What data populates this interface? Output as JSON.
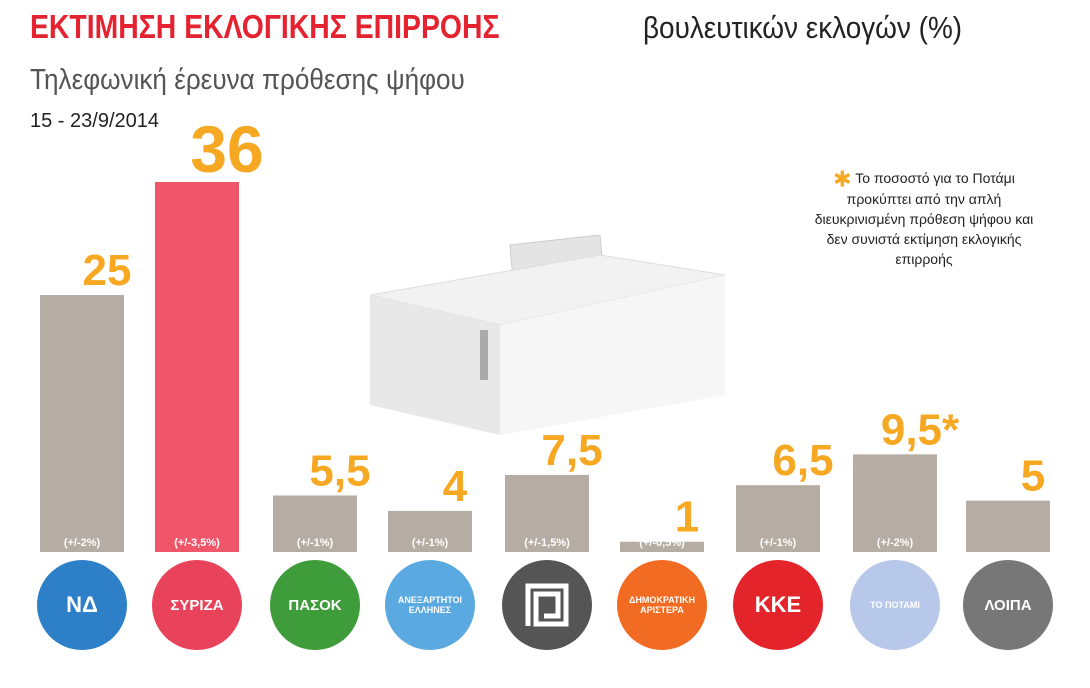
{
  "header": {
    "title_bold": "ΕΚΤΙΜΗΣΗ ΕΚΛΟΓΙΚΗΣ ΕΠΙΡΡΟΗΣ",
    "title_rest": "βουλευτικών εκλογών (%)",
    "subtitle": "Τηλεφωνική έρευνα πρόθεσης ψήφου",
    "date": "15 - 23/9/2014"
  },
  "note": "Το ποσοστό για το Ποτάμι προκύπτει από την απλή διευκρινισμένη πρόθεση ψήφου και δεν συνιστά εκτίμηση εκλογικής επιρροής",
  "chart_data": {
    "type": "bar",
    "categories": [
      "ΝΔ",
      "ΣΥΡΙΖΑ",
      "ΠΑΣΟΚ",
      "ΑΝΕΞΑΡΤΗΤΟΙ ΕΛΛΗΝΕΣ",
      "ΧΡΥΣΗ ΑΥΓΗ",
      "ΔΗΜΟΚΡΑΤΙΚΗ ΑΡΙΣΤΕΡΑ",
      "ΚΚΕ",
      "ΤΟ ΠΟΤΑΜΙ",
      "ΛΟΙΠΑ"
    ],
    "logo_labels": [
      "ΝΔ",
      "ΣΥΡΙΖΑ",
      "ΠΑΣΟΚ",
      "ΑΝΕΞΑΡΤΗΤΟΙ ΕΛΛΗΝΕΣ",
      "",
      "ΔΗΜΟΚΡΑΤΙΚΗ ΑΡΙΣΤΕΡΑ",
      "ΚΚΕ",
      "ΤΟ ΠΟΤΑΜΙ",
      "ΛΟΙΠΑ"
    ],
    "values": [
      25,
      36,
      5.5,
      4,
      7.5,
      1,
      6.5,
      9.5,
      5
    ],
    "value_labels": [
      "25",
      "36",
      "5,5",
      "4",
      "7,5",
      "1",
      "6,5",
      "9,5*",
      "5"
    ],
    "margins": [
      "(+/-2%)",
      "(+/-3,5%)",
      "(+/-1%)",
      "(+/-1%)",
      "(+/-1,5%)",
      "(+/-0,5%)",
      "(+/-1%)",
      "(+/-2%)",
      ""
    ],
    "bar_colors": [
      "#b5aca3",
      "#f0566a",
      "#b5aca3",
      "#b5aca3",
      "#b5aca3",
      "#b5aca3",
      "#b5aca3",
      "#b5aca3",
      "#b5aca3"
    ],
    "logo_colors": [
      "#2d7fc7",
      "#e8435a",
      "#3f9c3a",
      "#5aa9e0",
      "#555555",
      "#f26b22",
      "#e3242b",
      "#b8c8ea",
      "#777777"
    ],
    "label_color": "#f7a823",
    "ylim": [
      0,
      36
    ]
  }
}
